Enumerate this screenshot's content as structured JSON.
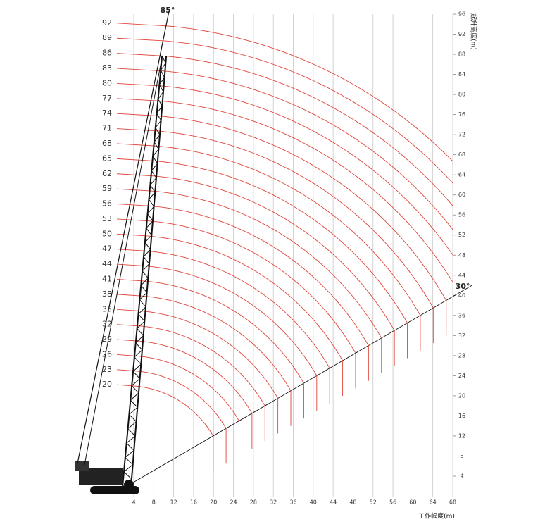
{
  "angles": {
    "max": "85°",
    "min": "30°"
  },
  "boom_lengths": [
    92,
    89,
    86,
    83,
    80,
    77,
    74,
    71,
    68,
    65,
    62,
    59,
    56,
    53,
    50,
    47,
    44,
    41,
    38,
    35,
    32,
    29,
    26,
    23,
    20
  ],
  "x_axis": {
    "title": "工作幅度(m)",
    "ticks": [
      4,
      8,
      12,
      16,
      20,
      24,
      28,
      32,
      36,
      40,
      44,
      48,
      52,
      56,
      60,
      64,
      68
    ]
  },
  "y_axis": {
    "title": "起升高度(m)",
    "ticks": [
      96,
      92,
      88,
      84,
      80,
      76,
      72,
      68,
      64,
      60,
      56,
      52,
      48,
      44,
      40,
      36,
      32,
      28,
      24,
      20,
      16,
      12,
      8,
      4
    ]
  }
}
